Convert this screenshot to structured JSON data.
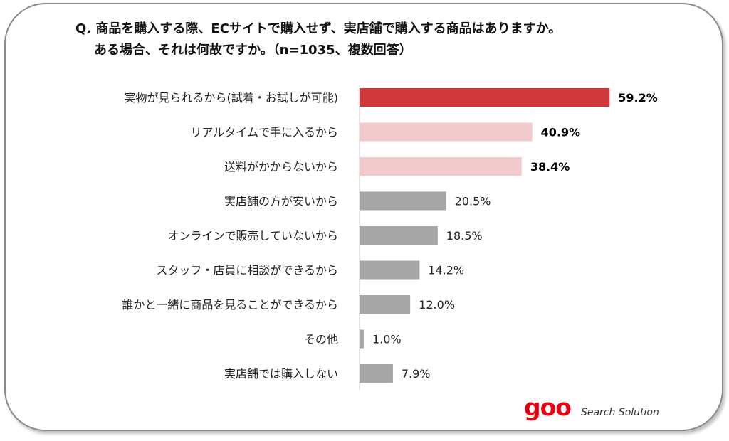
{
  "title_line1": "Q. 商品を購入する際、ECサイトで購入せず、実店舗で購入する商品はありますか。",
  "title_line2": "ある場合、それは何故ですか。（n=1035、複数回答）",
  "brand": {
    "logo": "goo",
    "tagline": "Search Solution"
  },
  "colors": {
    "highlight": "#d0393b",
    "secondary": "#f2cacc",
    "neutral": "#a6a6a6",
    "logo": "#e60012"
  },
  "chart_data": {
    "type": "bar",
    "orientation": "horizontal",
    "categories": [
      "実物が見られるから(試着・お試しが可能)",
      "リアルタイムで手に入るから",
      "送料がかからないから",
      "実店舗の方が安いから",
      "オンラインで販売していないから",
      "スタッフ・店員に相談ができるから",
      "誰かと一緒に商品を見ることができるから",
      "その他",
      "実店舗では購入しない"
    ],
    "values": [
      59.2,
      40.9,
      38.4,
      20.5,
      18.5,
      14.2,
      12.0,
      1.0,
      7.9
    ],
    "value_labels": [
      "59.2%",
      "40.9%",
      "38.4%",
      "20.5%",
      "18.5%",
      "14.2%",
      "12.0%",
      "1.0%",
      "7.9%"
    ],
    "bar_colors": [
      "highlight",
      "secondary",
      "secondary",
      "neutral",
      "neutral",
      "neutral",
      "neutral",
      "neutral",
      "neutral"
    ],
    "bold_labels": [
      true,
      true,
      true,
      false,
      false,
      false,
      false,
      false,
      false
    ],
    "unit": "%",
    "xlim": [
      0,
      60
    ],
    "grid": false,
    "legend": "none"
  }
}
